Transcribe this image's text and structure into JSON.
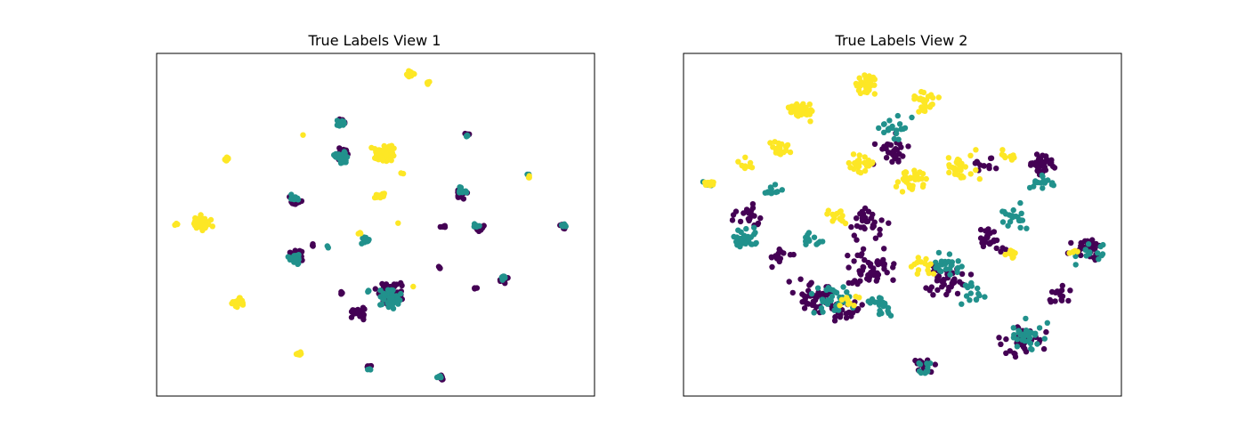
{
  "colors": {
    "class_0": "#440154",
    "class_1": "#21918c",
    "class_2": "#fde725"
  },
  "chart_data": [
    {
      "type": "scatter",
      "title": "True Labels View 1",
      "xlabel": "",
      "ylabel": "",
      "ticks": "none",
      "xlim": [
        0,
        100
      ],
      "ylim": [
        0,
        100
      ],
      "grid": false,
      "legend": "none",
      "series": [
        {
          "color": "#440154",
          "clusters": [
            {
              "x": 42.5,
              "y": 70.5,
              "r": 2.5,
              "n": 40
            },
            {
              "x": 32.0,
              "y": 41.0,
              "r": 2.0,
              "n": 30
            },
            {
              "x": 31.5,
              "y": 57.0,
              "r": 1.8,
              "n": 20
            },
            {
              "x": 42.5,
              "y": 79.5,
              "r": 1.6,
              "n": 15
            },
            {
              "x": 53.0,
              "y": 30.5,
              "r": 4.0,
              "n": 70
            },
            {
              "x": 46.0,
              "y": 24.5,
              "r": 2.5,
              "n": 25
            },
            {
              "x": 69.5,
              "y": 59.0,
              "r": 1.8,
              "n": 25
            },
            {
              "x": 73.5,
              "y": 49.0,
              "r": 1.5,
              "n": 18
            },
            {
              "x": 65.5,
              "y": 49.5,
              "r": 0.8,
              "n": 6
            },
            {
              "x": 79.5,
              "y": 34.0,
              "r": 1.5,
              "n": 15
            },
            {
              "x": 92.5,
              "y": 49.5,
              "r": 1.2,
              "n": 8
            },
            {
              "x": 71.0,
              "y": 76.5,
              "r": 0.8,
              "n": 6
            },
            {
              "x": 48.5,
              "y": 8.5,
              "r": 0.8,
              "n": 6
            },
            {
              "x": 65.0,
              "y": 5.5,
              "r": 1.0,
              "n": 10
            },
            {
              "x": 73.0,
              "y": 31.5,
              "r": 0.6,
              "n": 4
            },
            {
              "x": 42.0,
              "y": 30.0,
              "r": 0.6,
              "n": 5
            },
            {
              "x": 64.5,
              "y": 37.5,
              "r": 0.6,
              "n": 4
            },
            {
              "x": 35.5,
              "y": 44.0,
              "r": 0.5,
              "n": 3
            }
          ]
        },
        {
          "color": "#21918c",
          "clusters": [
            {
              "x": 42.5,
              "y": 69.5,
              "r": 2.5,
              "n": 30
            },
            {
              "x": 31.5,
              "y": 40.0,
              "r": 1.8,
              "n": 20
            },
            {
              "x": 31.5,
              "y": 57.5,
              "r": 1.5,
              "n": 12
            },
            {
              "x": 42.0,
              "y": 79.5,
              "r": 1.5,
              "n": 15
            },
            {
              "x": 53.0,
              "y": 28.0,
              "r": 4.0,
              "n": 45
            },
            {
              "x": 47.5,
              "y": 45.5,
              "r": 2.0,
              "n": 10
            },
            {
              "x": 69.5,
              "y": 60.0,
              "r": 1.5,
              "n": 12
            },
            {
              "x": 73.0,
              "y": 49.5,
              "r": 1.0,
              "n": 5
            },
            {
              "x": 79.0,
              "y": 34.5,
              "r": 1.2,
              "n": 8
            },
            {
              "x": 93.0,
              "y": 50.0,
              "r": 1.0,
              "n": 8
            },
            {
              "x": 71.0,
              "y": 76.0,
              "r": 0.8,
              "n": 4
            },
            {
              "x": 85.0,
              "y": 64.5,
              "r": 0.6,
              "n": 3
            },
            {
              "x": 64.5,
              "y": 5.5,
              "r": 1.0,
              "n": 6
            },
            {
              "x": 48.5,
              "y": 8.0,
              "r": 0.6,
              "n": 3
            },
            {
              "x": 48.5,
              "y": 30.5,
              "r": 0.6,
              "n": 3
            },
            {
              "x": 39.0,
              "y": 43.5,
              "r": 0.5,
              "n": 2
            }
          ]
        },
        {
          "color": "#fde725",
          "clusters": [
            {
              "x": 58.0,
              "y": 94.0,
              "r": 1.3,
              "n": 14
            },
            {
              "x": 62.0,
              "y": 91.5,
              "r": 0.8,
              "n": 8
            },
            {
              "x": 52.0,
              "y": 70.5,
              "r": 3.5,
              "n": 60
            },
            {
              "x": 51.0,
              "y": 58.5,
              "r": 1.5,
              "n": 16
            },
            {
              "x": 16.0,
              "y": 69.0,
              "r": 1.0,
              "n": 12
            },
            {
              "x": 10.5,
              "y": 50.5,
              "r": 2.8,
              "n": 45
            },
            {
              "x": 4.5,
              "y": 50.0,
              "r": 0.5,
              "n": 3
            },
            {
              "x": 18.5,
              "y": 27.5,
              "r": 1.8,
              "n": 25
            },
            {
              "x": 32.5,
              "y": 12.5,
              "r": 0.8,
              "n": 8
            },
            {
              "x": 85.0,
              "y": 64.0,
              "r": 0.5,
              "n": 3
            },
            {
              "x": 46.5,
              "y": 47.5,
              "r": 0.6,
              "n": 3
            },
            {
              "x": 55.0,
              "y": 50.5,
              "r": 0.3,
              "n": 1
            },
            {
              "x": 58.5,
              "y": 32.0,
              "r": 0.3,
              "n": 1
            },
            {
              "x": 33.5,
              "y": 76.0,
              "r": 0.4,
              "n": 1
            },
            {
              "x": 56.0,
              "y": 65.0,
              "r": 0.4,
              "n": 2
            }
          ]
        }
      ]
    },
    {
      "type": "scatter",
      "title": "True Labels View 2",
      "xlabel": "",
      "ylabel": "",
      "ticks": "none",
      "xlim": [
        0,
        100
      ],
      "ylim": [
        0,
        100
      ],
      "grid": false,
      "legend": "none",
      "series": [
        {
          "color": "#440154",
          "clusters": [
            {
              "x": 82.0,
              "y": 68.0,
              "r": 4.0,
              "n": 40
            },
            {
              "x": 92.0,
              "y": 43.0,
              "r": 5.0,
              "n": 35
            },
            {
              "x": 77.0,
              "y": 16.0,
              "r": 7.0,
              "n": 40
            },
            {
              "x": 55.0,
              "y": 9.0,
              "r": 3.5,
              "n": 15
            },
            {
              "x": 30.0,
              "y": 29.0,
              "r": 7.0,
              "n": 40
            },
            {
              "x": 43.0,
              "y": 37.0,
              "r": 8.0,
              "n": 50
            },
            {
              "x": 60.0,
              "y": 34.0,
              "r": 7.0,
              "n": 40
            },
            {
              "x": 42.0,
              "y": 50.0,
              "r": 6.0,
              "n": 30
            },
            {
              "x": 48.0,
              "y": 72.0,
              "r": 6.0,
              "n": 30
            },
            {
              "x": 70.0,
              "y": 45.0,
              "r": 5.0,
              "n": 25
            },
            {
              "x": 15.0,
              "y": 53.0,
              "r": 5.0,
              "n": 20
            },
            {
              "x": 22.0,
              "y": 40.0,
              "r": 4.0,
              "n": 15
            },
            {
              "x": 86.0,
              "y": 30.0,
              "r": 4.0,
              "n": 15
            },
            {
              "x": 37.0,
              "y": 26.0,
              "r": 5.0,
              "n": 20
            },
            {
              "x": 68.0,
              "y": 68.0,
              "r": 4.0,
              "n": 12
            }
          ]
        },
        {
          "color": "#21918c",
          "clusters": [
            {
              "x": 14.0,
              "y": 47.0,
              "r": 5.0,
              "n": 30
            },
            {
              "x": 20.0,
              "y": 60.0,
              "r": 3.0,
              "n": 12
            },
            {
              "x": 35.0,
              "y": 28.0,
              "r": 7.0,
              "n": 35
            },
            {
              "x": 45.0,
              "y": 26.0,
              "r": 5.0,
              "n": 20
            },
            {
              "x": 78.0,
              "y": 17.0,
              "r": 7.0,
              "n": 30
            },
            {
              "x": 55.0,
              "y": 8.0,
              "r": 3.5,
              "n": 12
            },
            {
              "x": 75.0,
              "y": 52.0,
              "r": 5.0,
              "n": 20
            },
            {
              "x": 92.0,
              "y": 42.0,
              "r": 5.0,
              "n": 15
            },
            {
              "x": 82.0,
              "y": 63.0,
              "r": 4.0,
              "n": 15
            },
            {
              "x": 48.0,
              "y": 78.0,
              "r": 5.0,
              "n": 20
            },
            {
              "x": 60.0,
              "y": 38.0,
              "r": 6.0,
              "n": 25
            },
            {
              "x": 30.0,
              "y": 45.0,
              "r": 4.0,
              "n": 12
            },
            {
              "x": 66.0,
              "y": 30.0,
              "r": 4.0,
              "n": 15
            },
            {
              "x": 6.0,
              "y": 62.0,
              "r": 2.0,
              "n": 4
            }
          ]
        },
        {
          "color": "#fde725",
          "clusters": [
            {
              "x": 42.0,
              "y": 91.0,
              "r": 4.0,
              "n": 35
            },
            {
              "x": 55.0,
              "y": 86.0,
              "r": 4.0,
              "n": 25
            },
            {
              "x": 27.0,
              "y": 83.0,
              "r": 4.0,
              "n": 40
            },
            {
              "x": 22.0,
              "y": 72.0,
              "r": 3.5,
              "n": 25
            },
            {
              "x": 41.0,
              "y": 68.0,
              "r": 4.0,
              "n": 25
            },
            {
              "x": 52.0,
              "y": 63.0,
              "r": 5.0,
              "n": 35
            },
            {
              "x": 63.0,
              "y": 67.0,
              "r": 6.0,
              "n": 30
            },
            {
              "x": 74.0,
              "y": 70.0,
              "r": 3.0,
              "n": 10
            },
            {
              "x": 6.0,
              "y": 62.0,
              "r": 1.5,
              "n": 10
            },
            {
              "x": 35.0,
              "y": 52.0,
              "r": 4.0,
              "n": 15
            },
            {
              "x": 55.0,
              "y": 38.0,
              "r": 5.0,
              "n": 15
            },
            {
              "x": 38.0,
              "y": 28.0,
              "r": 4.0,
              "n": 10
            },
            {
              "x": 75.0,
              "y": 42.0,
              "r": 2.5,
              "n": 8
            },
            {
              "x": 14.0,
              "y": 68.0,
              "r": 3.0,
              "n": 10
            },
            {
              "x": 89.0,
              "y": 42.0,
              "r": 2.0,
              "n": 5
            }
          ]
        }
      ]
    }
  ]
}
